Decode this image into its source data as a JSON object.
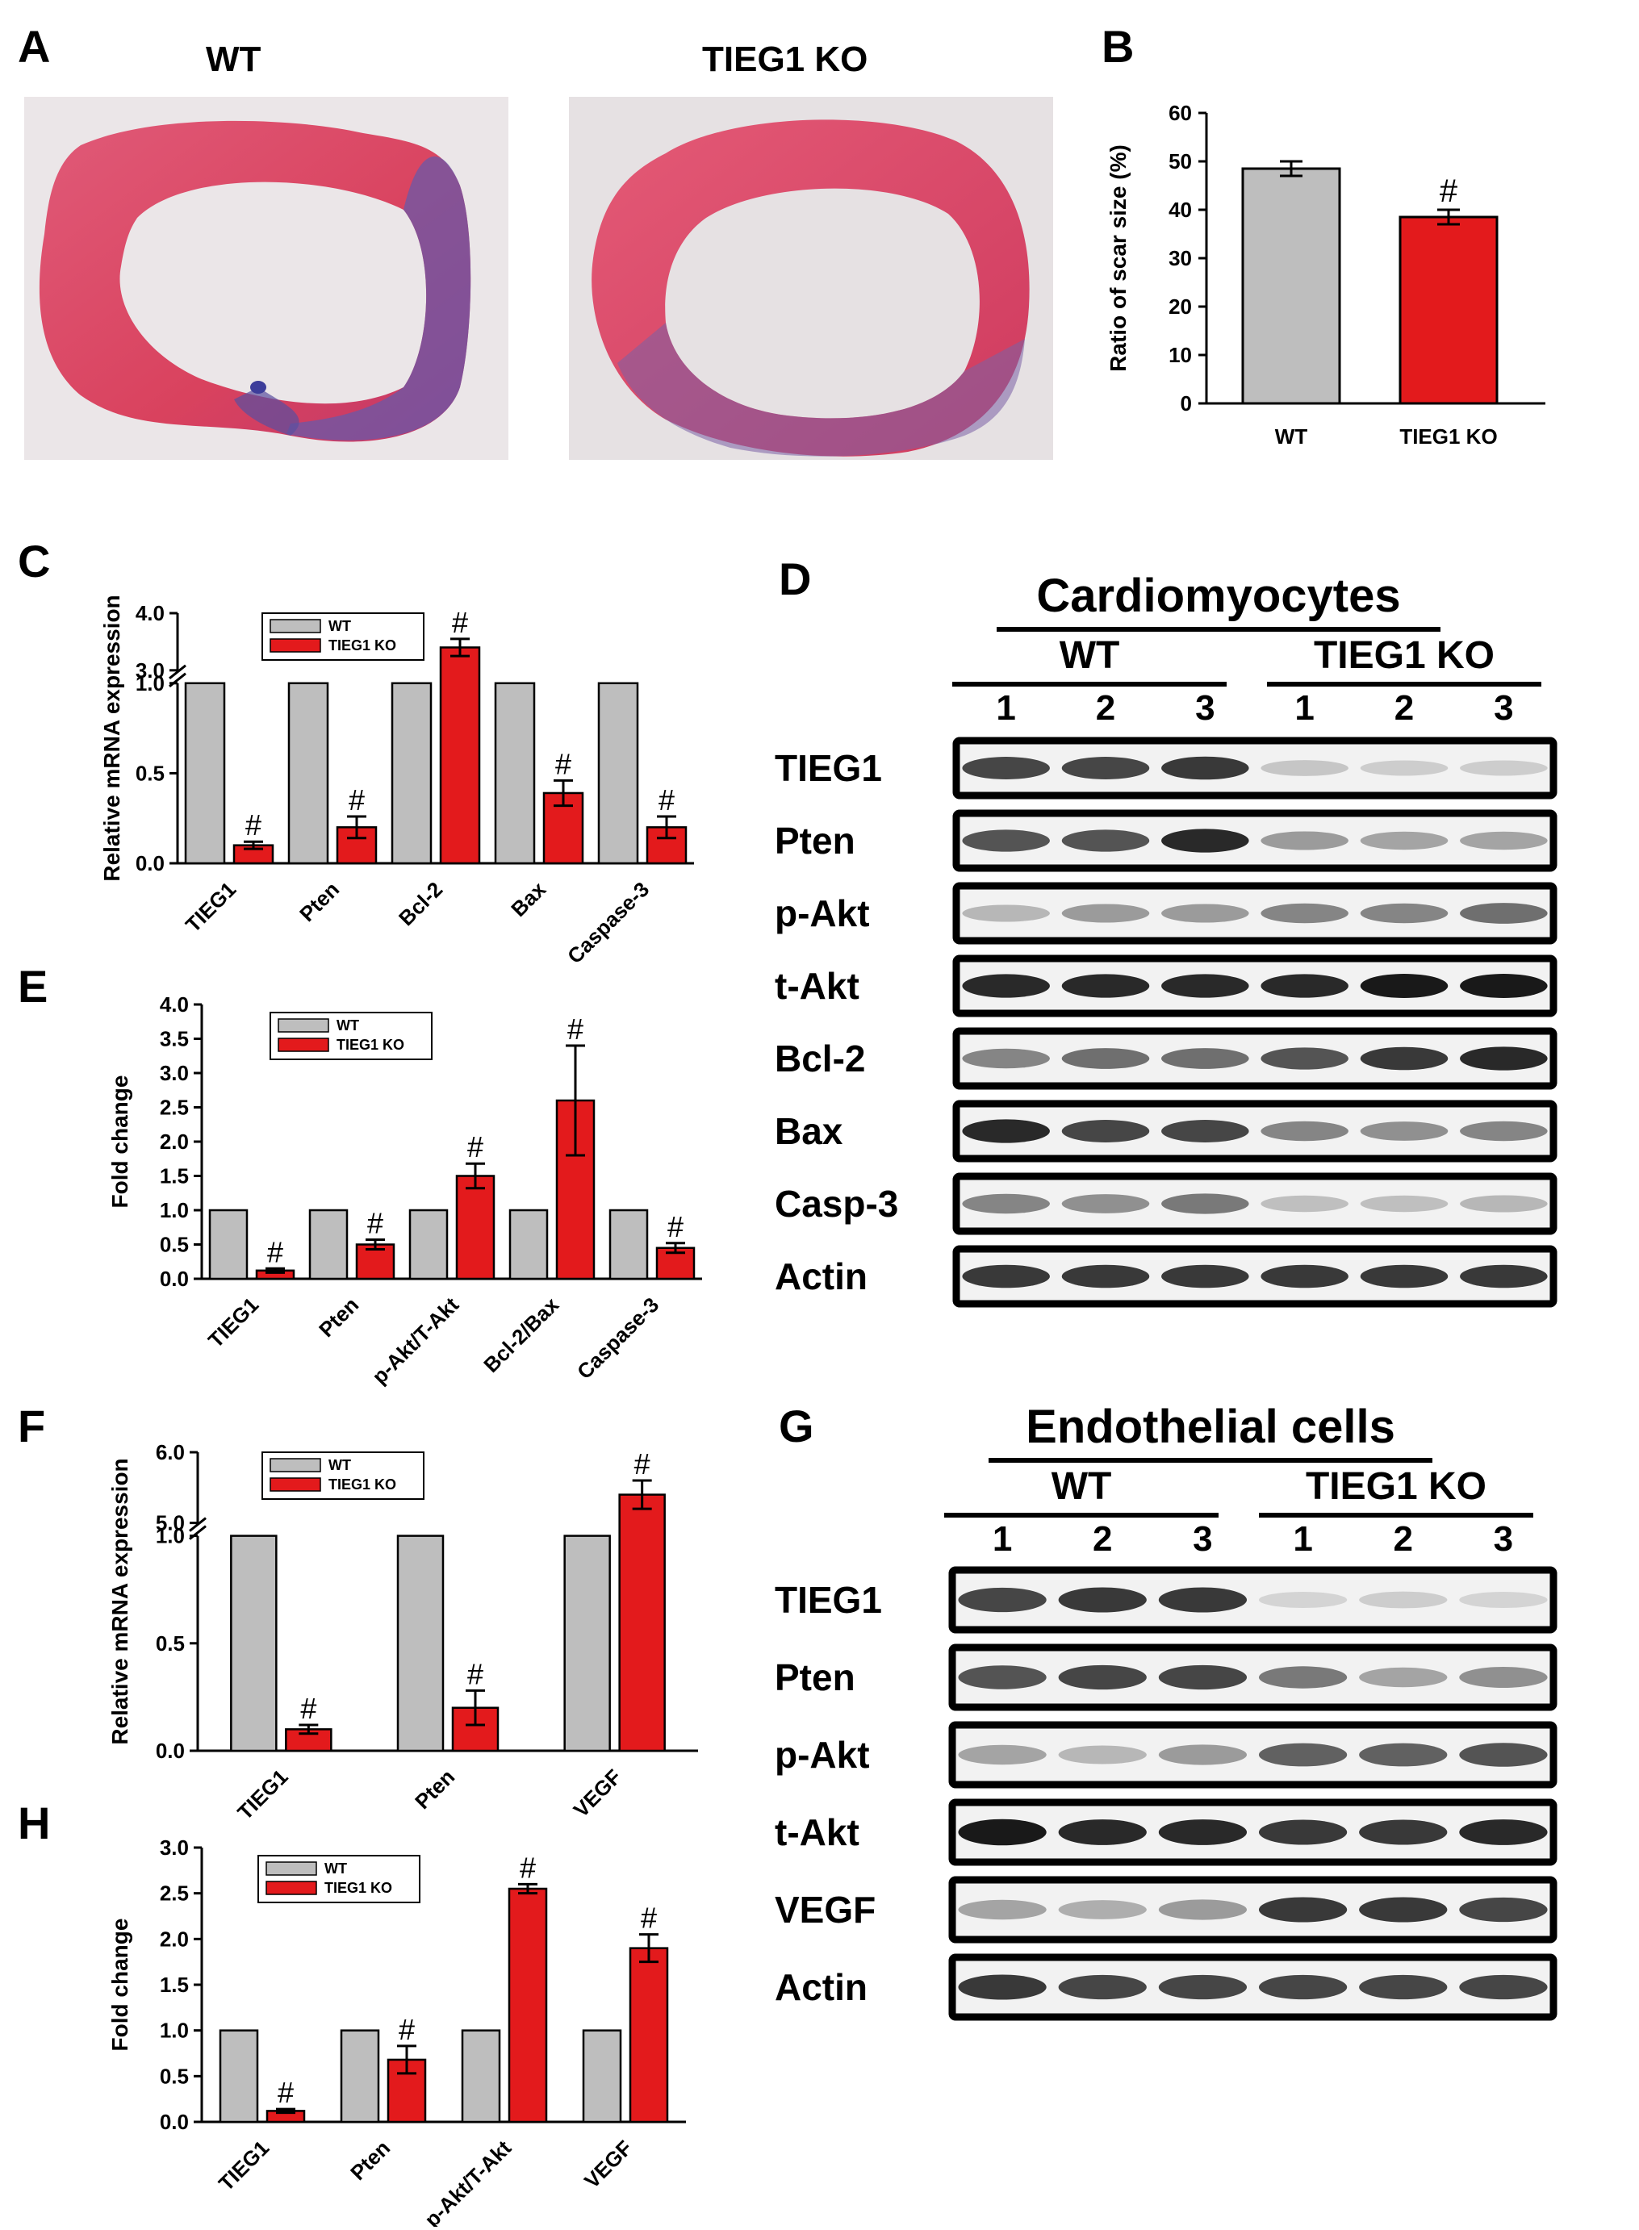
{
  "panels": {
    "A": {
      "label": "A",
      "wt_title": "WT",
      "ko_title": "TIEG1 KO"
    },
    "B": {
      "label": "B"
    },
    "C": {
      "label": "C"
    },
    "D": {
      "label": "D",
      "title": "Cardiomyocytes",
      "wt_group": "WT",
      "ko_group": "TIEG1 KO",
      "lanes": [
        "1",
        "2",
        "3",
        "1",
        "2",
        "3"
      ],
      "rows": [
        "TIEG1",
        "Pten",
        "p-Akt",
        "t-Akt",
        "Bcl-2",
        "Bax",
        "Casp-3",
        "Actin"
      ],
      "intensity": [
        [
          0.85,
          0.85,
          0.9,
          0.25,
          0.2,
          0.2
        ],
        [
          0.8,
          0.8,
          0.95,
          0.5,
          0.45,
          0.45
        ],
        [
          0.35,
          0.5,
          0.5,
          0.6,
          0.6,
          0.7
        ],
        [
          0.95,
          0.95,
          0.95,
          0.95,
          1.0,
          1.0
        ],
        [
          0.6,
          0.7,
          0.7,
          0.8,
          0.9,
          0.95
        ],
        [
          0.95,
          0.85,
          0.85,
          0.6,
          0.55,
          0.6
        ],
        [
          0.6,
          0.55,
          0.65,
          0.3,
          0.3,
          0.35
        ],
        [
          0.9,
          0.9,
          0.9,
          0.9,
          0.9,
          0.9
        ]
      ]
    },
    "E": {
      "label": "E"
    },
    "F": {
      "label": "F"
    },
    "G": {
      "label": "G",
      "title": "Endothelial cells",
      "wt_group": "WT",
      "ko_group": "TIEG1 KO",
      "lanes": [
        "1",
        "2",
        "3",
        "1",
        "2",
        "3"
      ],
      "rows": [
        "TIEG1",
        "Pten",
        "p-Akt",
        "t-Akt",
        "VEGF",
        "Actin"
      ],
      "intensity": [
        [
          0.85,
          0.9,
          0.9,
          0.15,
          0.2,
          0.15
        ],
        [
          0.8,
          0.85,
          0.85,
          0.65,
          0.45,
          0.55
        ],
        [
          0.45,
          0.35,
          0.5,
          0.75,
          0.75,
          0.8
        ],
        [
          1.0,
          0.95,
          0.95,
          0.9,
          0.9,
          0.95
        ],
        [
          0.45,
          0.4,
          0.5,
          0.9,
          0.9,
          0.85
        ],
        [
          0.9,
          0.85,
          0.85,
          0.85,
          0.85,
          0.85
        ]
      ]
    },
    "H": {
      "label": "H"
    }
  },
  "chart_data": [
    {
      "id": "B",
      "type": "bar",
      "categories": [
        "WT",
        "TIEG1 KO"
      ],
      "values": [
        48.5,
        38.5
      ],
      "errors": [
        1.5,
        1.5
      ],
      "significance": [
        "",
        "#"
      ],
      "ylabel": "Ratio of scar size (%)",
      "ylim": [
        0,
        60
      ],
      "yticks": [
        "0",
        "10",
        "20",
        "30",
        "40",
        "50",
        "60"
      ],
      "colors": [
        "#bebebe",
        "#e31a1c"
      ]
    },
    {
      "id": "C",
      "type": "bar",
      "categories": [
        "TIEG1",
        "Pten",
        "Bcl-2",
        "Bax",
        "Caspase-3"
      ],
      "series": [
        {
          "name": "WT",
          "values": [
            1.0,
            1.0,
            1.0,
            1.0,
            1.0
          ]
        },
        {
          "name": "TIEG1 KO",
          "values": [
            0.1,
            0.2,
            3.4,
            0.39,
            0.2
          ],
          "errors": [
            0.02,
            0.06,
            0.15,
            0.07,
            0.06
          ]
        }
      ],
      "significance": [
        "#",
        "#",
        "#",
        "#",
        "#"
      ],
      "ylabel": "Relative mRNA expression",
      "ylim": [
        0,
        4.0
      ],
      "axis_break": [
        1.0,
        3.0
      ],
      "yticks": [
        "0.0",
        "0.5",
        "1.0",
        "3.0",
        "4.0"
      ],
      "legend": "top-left",
      "colors": [
        "#bebebe",
        "#e31a1c"
      ]
    },
    {
      "id": "E",
      "type": "bar",
      "categories": [
        "TIEG1",
        "Pten",
        "p-Akt/T-Akt",
        "Bcl-2/Bax",
        "Caspase-3"
      ],
      "series": [
        {
          "name": "WT",
          "values": [
            1.0,
            1.0,
            1.0,
            1.0,
            1.0
          ]
        },
        {
          "name": "TIEG1 KO",
          "values": [
            0.12,
            0.5,
            1.5,
            2.6,
            0.45
          ],
          "errors": [
            0.03,
            0.07,
            0.18,
            0.8,
            0.07
          ]
        }
      ],
      "significance": [
        "#",
        "#",
        "#",
        "#",
        "#"
      ],
      "ylabel": "Fold change",
      "ylim": [
        0,
        4.0
      ],
      "yticks": [
        "0.0",
        "0.5",
        "1.0",
        "1.5",
        "2.0",
        "2.5",
        "3.0",
        "3.5",
        "4.0"
      ],
      "legend": "top-left",
      "colors": [
        "#bebebe",
        "#e31a1c"
      ]
    },
    {
      "id": "F",
      "type": "bar",
      "categories": [
        "TIEG1",
        "Pten",
        "VEGF"
      ],
      "series": [
        {
          "name": "WT",
          "values": [
            1.0,
            1.0,
            1.0
          ]
        },
        {
          "name": "TIEG1 KO",
          "values": [
            0.1,
            0.2,
            5.4
          ],
          "errors": [
            0.02,
            0.08,
            0.2
          ]
        }
      ],
      "significance": [
        "#",
        "#",
        "#"
      ],
      "ylabel": "Relative mRNA expression",
      "ylim": [
        0,
        6.0
      ],
      "axis_break": [
        1.0,
        5.0
      ],
      "yticks": [
        "0.0",
        "0.5",
        "1.0",
        "5.0",
        "6.0"
      ],
      "legend": "top-left",
      "colors": [
        "#bebebe",
        "#e31a1c"
      ]
    },
    {
      "id": "H",
      "type": "bar",
      "categories": [
        "TIEG1",
        "Pten",
        "p-Akt/T-Akt",
        "VEGF"
      ],
      "series": [
        {
          "name": "WT",
          "values": [
            1.0,
            1.0,
            1.0,
            1.0
          ]
        },
        {
          "name": "TIEG1 KO",
          "values": [
            0.12,
            0.68,
            2.55,
            1.9
          ],
          "errors": [
            0.02,
            0.15,
            0.05,
            0.15
          ]
        }
      ],
      "significance": [
        "#",
        "#",
        "#",
        "#"
      ],
      "ylabel": "Fold change",
      "ylim": [
        0,
        3.0
      ],
      "yticks": [
        "0.0",
        "0.5",
        "1.0",
        "1.5",
        "2.0",
        "2.5",
        "3.0"
      ],
      "legend": "top-left",
      "colors": [
        "#bebebe",
        "#e31a1c"
      ]
    }
  ]
}
